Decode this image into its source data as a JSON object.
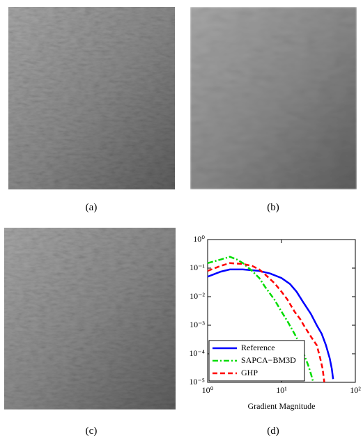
{
  "captions": [
    "(a)",
    "(b)",
    "(c)",
    "(d)"
  ],
  "chart_data": {
    "type": "line",
    "xlabel": "Gradient Magnitude",
    "xscale": "log",
    "yscale": "log",
    "legend": "lower left",
    "xlim": [
      1,
      100
    ],
    "ylim": [
      1e-05,
      1
    ],
    "xticks": [
      {
        "value": 1,
        "label": "10⁰"
      },
      {
        "value": 10,
        "label": "10¹"
      },
      {
        "value": 100,
        "label": "10²"
      }
    ],
    "yticks": [
      {
        "value": 1e-05,
        "label": "10⁻⁵"
      },
      {
        "value": 0.0001,
        "label": "10⁻⁴"
      },
      {
        "value": 0.001,
        "label": "10⁻³"
      },
      {
        "value": 0.01,
        "label": "10⁻²"
      },
      {
        "value": 0.1,
        "label": "10⁻¹"
      },
      {
        "value": 1,
        "label": "10⁰"
      }
    ],
    "series": [
      {
        "name": "Reference",
        "color": "#0000ff",
        "dash": "none",
        "x": [
          1,
          1.5,
          2,
          3,
          5,
          7,
          10,
          13,
          16,
          20,
          25,
          30,
          35,
          40,
          45,
          48,
          50
        ],
        "values": [
          0.05,
          0.075,
          0.09,
          0.09,
          0.08,
          0.065,
          0.045,
          0.028,
          0.015,
          0.006,
          0.0025,
          0.001,
          0.0005,
          0.0002,
          7e-05,
          3e-05,
          1.3e-05
        ]
      },
      {
        "name": "SAPCA−BM3D",
        "color": "#00dd00",
        "dash": "8 3 2 3",
        "x": [
          1,
          1.5,
          2,
          2.5,
          3,
          4,
          5,
          6,
          8,
          10,
          12,
          15,
          18,
          20,
          23,
          25,
          27
        ],
        "values": [
          0.15,
          0.2,
          0.25,
          0.2,
          0.15,
          0.08,
          0.045,
          0.022,
          0.008,
          0.003,
          0.0014,
          0.0005,
          0.0002,
          0.0001,
          4e-05,
          2e-05,
          1e-05
        ]
      },
      {
        "name": "GHP",
        "color": "#ff0000",
        "dash": "7 4",
        "x": [
          1,
          1.5,
          2,
          3,
          4,
          5,
          6,
          8,
          10,
          12,
          15,
          18,
          20,
          25,
          30,
          33,
          36,
          38
        ],
        "values": [
          0.08,
          0.12,
          0.15,
          0.14,
          0.12,
          0.09,
          0.06,
          0.03,
          0.015,
          0.008,
          0.003,
          0.0016,
          0.001,
          0.0004,
          0.0002,
          8e-05,
          3e-05,
          1e-05
        ]
      }
    ]
  }
}
